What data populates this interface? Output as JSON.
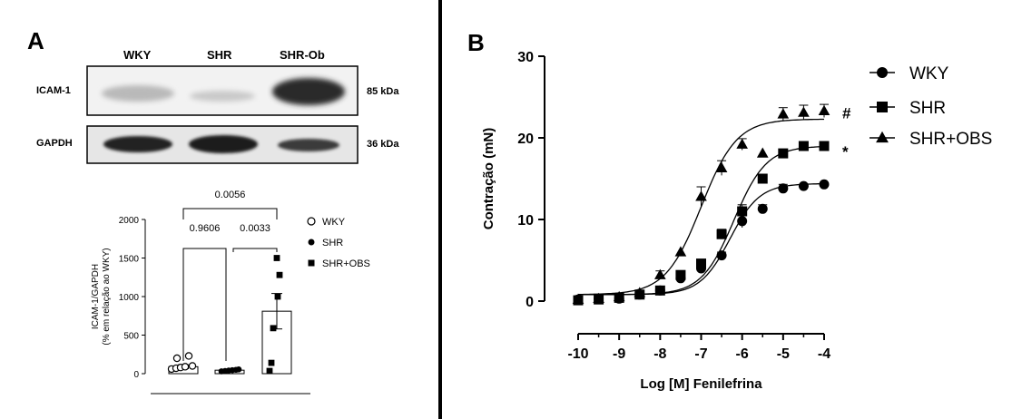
{
  "panel_a": {
    "letter": "A",
    "lanes": [
      "WKY",
      "SHR",
      "SHR-Ob"
    ],
    "blots": [
      {
        "label": "ICAM-1",
        "kda": "85 kDa"
      },
      {
        "label": "GAPDH",
        "kda": "36 kDa"
      }
    ]
  },
  "panel_b": {
    "letter": "B"
  },
  "chart_data": [
    {
      "type": "scatter",
      "subtype": "bar-with-points",
      "ylabel": "ICAM-1/GAPDH\n(% em relação ao WKY)",
      "ylim": [
        0,
        2000
      ],
      "yticks": [
        0,
        500,
        1000,
        1500,
        2000
      ],
      "categories": [
        "WKY",
        "SHR",
        "SHR+OBS"
      ],
      "bar_means": [
        90,
        45,
        810
      ],
      "bar_sem": [
        25,
        8,
        230
      ],
      "points": [
        [
          60,
          70,
          80,
          90,
          200,
          230,
          100
        ],
        [
          30,
          35,
          40,
          45,
          50,
          55
        ],
        [
          35,
          140,
          590,
          1000,
          1280,
          1500
        ]
      ],
      "legend": [
        {
          "name": "WKY",
          "marker": "open-circle"
        },
        {
          "name": "SHR",
          "marker": "filled-circle"
        },
        {
          "name": "SHR+OBS",
          "marker": "filled-square"
        }
      ],
      "legend_position": "right",
      "comparisons": [
        {
          "groups": [
            0,
            2
          ],
          "p": "0.0056"
        },
        {
          "groups": [
            0,
            1
          ],
          "p": "0.9606"
        },
        {
          "groups": [
            1,
            2
          ],
          "p": "0.0033"
        }
      ]
    },
    {
      "type": "line",
      "subtype": "concentration-response",
      "xlabel": "Log [M] Fenilefrina",
      "ylabel": "Contração (mN)",
      "xlim": [
        -10,
        -4
      ],
      "ylim": [
        0,
        30
      ],
      "xticks": [
        -10,
        -9,
        -8,
        -7,
        -6,
        -5,
        -4
      ],
      "yticks": [
        0,
        10,
        20,
        30
      ],
      "legend_position": "top-right",
      "series": [
        {
          "name": "WKY",
          "marker": "circle",
          "x": [
            -10,
            -9.5,
            -9,
            -8.5,
            -8,
            -7.5,
            -7,
            -6.5,
            -6,
            -5.5,
            -5,
            -4.5,
            -4
          ],
          "y": [
            0.2,
            0.3,
            0.3,
            0.8,
            1.3,
            2.8,
            4.0,
            5.6,
            9.8,
            11.3,
            13.8,
            14.1,
            14.3
          ],
          "err": [
            0,
            0,
            0,
            0,
            0,
            0,
            0,
            0.4,
            0.8,
            0.5,
            0.5,
            0,
            0
          ],
          "fit": {
            "bottom": 0.8,
            "top": 14.4,
            "logec50": -6.3,
            "hill": 1.2
          },
          "annotation": ""
        },
        {
          "name": "SHR",
          "marker": "square",
          "x": [
            -10,
            -9.5,
            -9,
            -8.5,
            -8,
            -7.5,
            -7,
            -6.5,
            -6,
            -5.5,
            -5,
            -4.5,
            -4
          ],
          "y": [
            0.1,
            0.2,
            0.4,
            0.8,
            1.3,
            3.2,
            4.6,
            8.2,
            11.0,
            15.0,
            18.1,
            19.0,
            19.0
          ],
          "err": [
            0,
            0,
            0,
            0,
            0,
            0,
            0.5,
            0.6,
            0.8,
            0.5,
            0.4,
            0,
            0
          ],
          "fit": {
            "bottom": 0.8,
            "top": 19.0,
            "logec50": -6.2,
            "hill": 1.1
          },
          "annotation": "*"
        },
        {
          "name": "SHR+OBS",
          "marker": "triangle",
          "x": [
            -10,
            -9.5,
            -9,
            -8.5,
            -8,
            -7.5,
            -7,
            -6.5,
            -6,
            -5.5,
            -5,
            -4.5,
            -4
          ],
          "y": [
            0.2,
            0.3,
            0.5,
            1.0,
            3.2,
            6.0,
            12.8,
            16.3,
            19.2,
            18.1,
            22.9,
            23.1,
            23.3
          ],
          "err": [
            0,
            0,
            0,
            0,
            0.5,
            0,
            1.2,
            0.9,
            0.7,
            0,
            0.8,
            0.9,
            0.8
          ],
          "fit": {
            "bottom": 0.8,
            "top": 22.3,
            "logec50": -7.0,
            "hill": 1.0
          },
          "annotation": "#"
        }
      ]
    }
  ]
}
